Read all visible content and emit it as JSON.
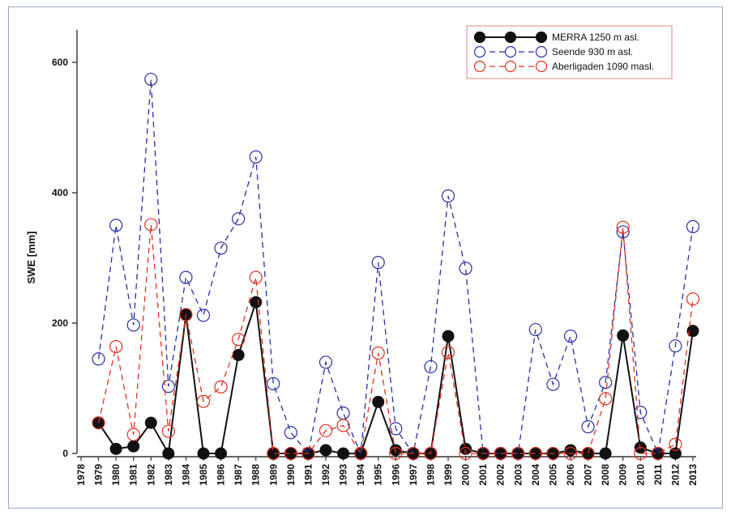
{
  "chart_data": {
    "type": "line",
    "title": "",
    "xlabel": "",
    "ylabel": "SWE [mm]",
    "x": [
      1978,
      1979,
      1980,
      1981,
      1982,
      1983,
      1984,
      1985,
      1986,
      1987,
      1988,
      1989,
      1990,
      1991,
      1992,
      1993,
      1994,
      1995,
      1996,
      1997,
      1998,
      1999,
      2000,
      2001,
      2002,
      2003,
      2004,
      2005,
      2006,
      2007,
      2008,
      2009,
      2010,
      2011,
      2012,
      2013
    ],
    "xlim": [
      1978,
      2013
    ],
    "ylim": [
      0,
      650
    ],
    "yticks": [
      0,
      200,
      400,
      600
    ],
    "grid": false,
    "legend_position": "top-right",
    "series": [
      {
        "name": "MERRA 1250 m asl.",
        "color": "#111111",
        "style": "solid-filled-circle",
        "x": [
          1979,
          1980,
          1981,
          1982,
          1983,
          1984,
          1985,
          1986,
          1987,
          1988,
          1989,
          1990,
          1991,
          1992,
          1993,
          1994,
          1995,
          1996,
          1997,
          1998,
          1999,
          2000,
          2001,
          2002,
          2003,
          2004,
          2005,
          2006,
          2007,
          2008,
          2009,
          2010,
          2011,
          2012,
          2013
        ],
        "values": [
          47,
          7,
          11,
          47,
          0,
          213,
          0,
          0,
          151,
          232,
          0,
          0,
          0,
          5,
          0,
          0,
          79,
          5,
          0,
          0,
          180,
          7,
          0,
          0,
          0,
          0,
          0,
          5,
          0,
          0,
          181,
          9,
          0,
          0,
          188
        ]
      },
      {
        "name": "Seende 930 m asl.",
        "color": "#2a2ea8",
        "style": "dashed-open-circle",
        "x": [
          1979,
          1980,
          1981,
          1982,
          1983,
          1984,
          1985,
          1986,
          1987,
          1988,
          1989,
          1990,
          1991,
          1992,
          1993,
          1994,
          1995,
          1996,
          1997,
          1998,
          1999,
          2000,
          2001,
          2002,
          2003,
          2004,
          2005,
          2006,
          2007,
          2008,
          2009,
          2010,
          2011,
          2012,
          2013
        ],
        "values": [
          145,
          350,
          197,
          574,
          103,
          270,
          212,
          315,
          360,
          455,
          107,
          32,
          0,
          140,
          62,
          0,
          293,
          38,
          0,
          133,
          395,
          284,
          0,
          0,
          0,
          190,
          106,
          180,
          41,
          109,
          340,
          63,
          0,
          165,
          348
        ]
      },
      {
        "name": "Aberligaden 1090 masl.",
        "color": "#e0301e",
        "style": "dashed-open-circle",
        "x": [
          1979,
          1980,
          1981,
          1982,
          1983,
          1984,
          1985,
          1986,
          1987,
          1988,
          1989,
          1990,
          1991,
          1992,
          1993,
          1994,
          1995,
          1996,
          1997,
          1998,
          1999,
          2000,
          2001,
          2002,
          2003,
          2004,
          2005,
          2006,
          2007,
          2008,
          2009,
          2010,
          2011,
          2012,
          2013
        ],
        "values": [
          47,
          164,
          29,
          351,
          34,
          213,
          80,
          102,
          175,
          270,
          0,
          0,
          0,
          35,
          43,
          0,
          154,
          0,
          0,
          0,
          155,
          0,
          0,
          0,
          0,
          0,
          0,
          0,
          0,
          84,
          347,
          0,
          0,
          14,
          237
        ]
      }
    ]
  }
}
